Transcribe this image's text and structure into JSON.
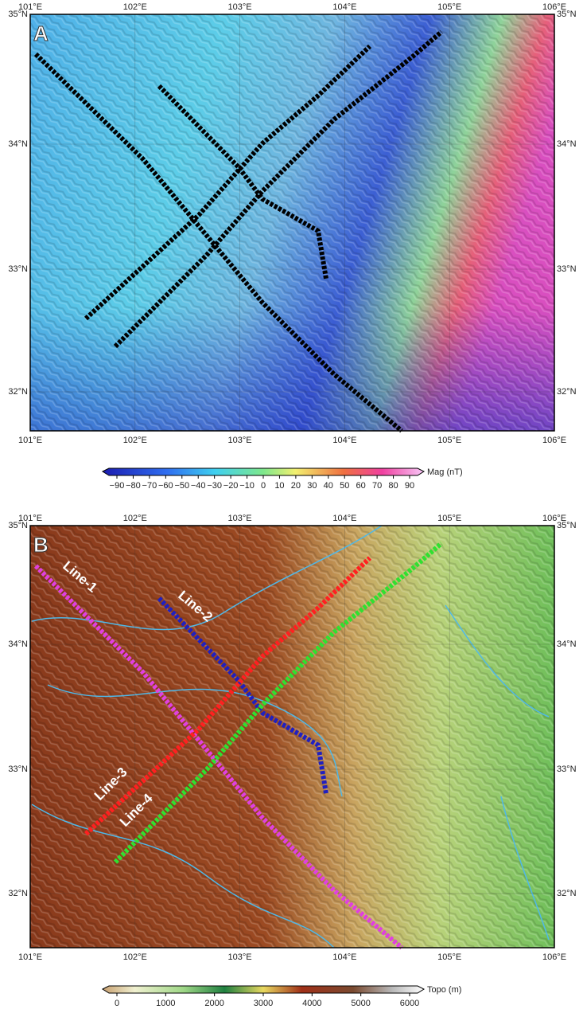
{
  "panels": [
    {
      "label": "A",
      "lon_ticks": [
        "101°E",
        "102°E",
        "103°E",
        "104°E",
        "105°E",
        "106°E"
      ],
      "lat_ticks": [
        "35°N",
        "34°N",
        "33°N",
        "32°N"
      ],
      "colorbar": {
        "title": "Mag (nT)",
        "ticks": [
          "−90",
          "−80",
          "−70",
          "−60",
          "−50",
          "−40",
          "−30",
          "−20",
          "−10",
          "0",
          "10",
          "20",
          "30",
          "40",
          "50",
          "60",
          "70",
          "80",
          "90"
        ]
      }
    },
    {
      "label": "B",
      "lon_ticks": [
        "101°E",
        "102°E",
        "103°E",
        "104°E",
        "105°E",
        "106°E"
      ],
      "lat_ticks": [
        "35°N",
        "34°N",
        "33°N",
        "32°N"
      ],
      "line_labels": [
        "Line-1",
        "Line-2",
        "Line-3",
        "Line-4"
      ],
      "colorbar": {
        "title": "Topo (m)",
        "ticks": [
          "0",
          "1000",
          "2000",
          "3000",
          "4000",
          "5000",
          "6000"
        ]
      }
    }
  ]
}
